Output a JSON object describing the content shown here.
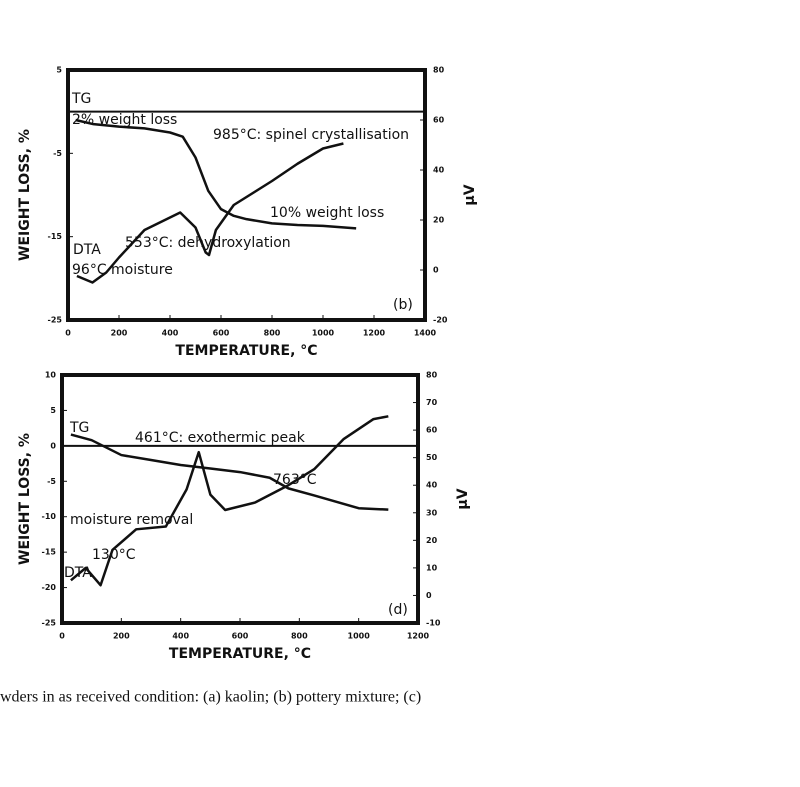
{
  "chart_data": [
    {
      "type": "line",
      "ylabel": "WEIGHT LOSS, %",
      "y2label": "μV",
      "xlabel": "TEMPERATURE, °C",
      "xlim": [
        0,
        1400
      ],
      "xticks": [
        0,
        200,
        400,
        600,
        800,
        1000,
        1200,
        1400
      ],
      "ylim": [
        -25,
        5
      ],
      "yticks": [
        5,
        -5,
        -15,
        -25
      ],
      "y2lim": [
        -20,
        80
      ],
      "y2ticks": [
        80,
        60,
        40,
        20,
        0,
        -20
      ],
      "hlines": [
        0
      ],
      "color": "#111",
      "series": [
        {
          "name": "TG",
          "x": [
            30,
            100,
            200,
            300,
            400,
            450,
            500,
            550,
            600,
            650,
            700,
            800,
            900,
            1000,
            1130
          ],
          "values": [
            -1,
            -1.5,
            -1.8,
            -2,
            -2.5,
            -3,
            -5.5,
            -9.5,
            -11.7,
            -12.5,
            -12.9,
            -13.4,
            -13.6,
            -13.7,
            -14
          ]
        },
        {
          "name": "DTA",
          "axis": "y2",
          "x": [
            35,
            96,
            150,
            200,
            300,
            400,
            440,
            500,
            540,
            553,
            580,
            650,
            800,
            900,
            1000,
            1080
          ],
          "values": [
            -2.4,
            -5,
            -1,
            5,
            16,
            21,
            23,
            17,
            7,
            6,
            16,
            26,
            35.6,
            42.5,
            48.6,
            50.6
          ]
        }
      ],
      "annotations": [
        "2% weight loss",
        "985°C: spinel crystallisation",
        "10% weight loss",
        "553°C: dehydroxylation",
        "96°C moisture",
        "(b)"
      ]
    },
    {
      "type": "line",
      "ylabel": "WEIGHT LOSS, %",
      "y2label": "μV",
      "xlabel": "TEMPERATURE, °C",
      "xlim": [
        0,
        1200
      ],
      "xticks": [
        0,
        200,
        400,
        600,
        800,
        1000,
        1200
      ],
      "ylim": [
        -25,
        10
      ],
      "yticks": [
        10,
        5,
        0,
        -5,
        -10,
        -15,
        -20,
        -25
      ],
      "y2lim": [
        -10,
        80
      ],
      "y2ticks": [
        80,
        70,
        60,
        50,
        40,
        30,
        20,
        10,
        0,
        -10
      ],
      "hlines": [
        0
      ],
      "color": "#111",
      "series": [
        {
          "name": "TG",
          "x": [
            30,
            100,
            200,
            300,
            400,
            500,
            600,
            700,
            763,
            850,
            900,
            1000,
            1100
          ],
          "values": [
            1.6,
            0.8,
            -1.3,
            -2,
            -2.7,
            -3.2,
            -3.7,
            -4.5,
            -6,
            -7,
            -7.6,
            -8.8,
            -9
          ]
        },
        {
          "name": "DTA",
          "axis": "y2",
          "x": [
            30,
            80,
            130,
            170,
            250,
            350,
            420,
            461,
            500,
            550,
            650,
            763,
            850,
            950,
            1050,
            1100
          ],
          "values": [
            5.5,
            10,
            3.7,
            16.5,
            24,
            25,
            38.5,
            52,
            36.6,
            31,
            33.7,
            40,
            45.8,
            56.8,
            64,
            65
          ]
        }
      ],
      "annotations": [
        "461°C: exothermic peak",
        "763°C",
        "moisture removal",
        "130°C",
        "(d)"
      ]
    }
  ],
  "caption": "wders in as received condition: (a) kaolin; (b) pottery mixture; (c)"
}
